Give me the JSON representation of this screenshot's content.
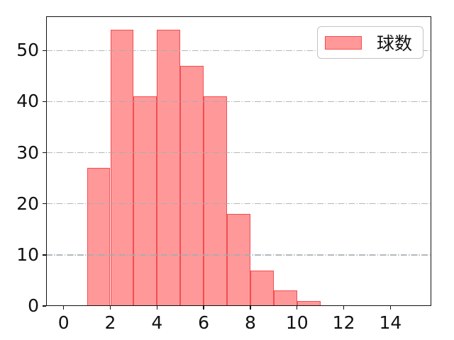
{
  "chart_data": {
    "type": "bar",
    "subtype": "histogram",
    "title": "",
    "xlabel": "",
    "ylabel": "",
    "legend": {
      "label": "球数",
      "position": "upper right"
    },
    "bins": {
      "start": 1,
      "width": 1
    },
    "categories": [
      "1-2",
      "2-3",
      "3-4",
      "4-5",
      "5-6",
      "6-7",
      "7-8",
      "8-9",
      "9-10",
      "10-11"
    ],
    "values": [
      27,
      54,
      41,
      54,
      47,
      41,
      18,
      7,
      3,
      1
    ],
    "xticks": [
      0,
      2,
      4,
      6,
      8,
      10,
      12,
      14
    ],
    "yticks": [
      0,
      10,
      20,
      30,
      40,
      50
    ],
    "xlim": [
      -0.75,
      15.75
    ],
    "ylim": [
      0,
      56.7
    ],
    "grid": {
      "axis": "y",
      "style": "dash-dot",
      "on": true
    },
    "colors": {
      "bar_fill": "#ff9999",
      "bar_edge": "rgba(242,56,62,0.8)",
      "grid": "#a6abb0",
      "axis": "#111111",
      "legend_border": "#c3c3c3",
      "background": "#ffffff"
    }
  }
}
